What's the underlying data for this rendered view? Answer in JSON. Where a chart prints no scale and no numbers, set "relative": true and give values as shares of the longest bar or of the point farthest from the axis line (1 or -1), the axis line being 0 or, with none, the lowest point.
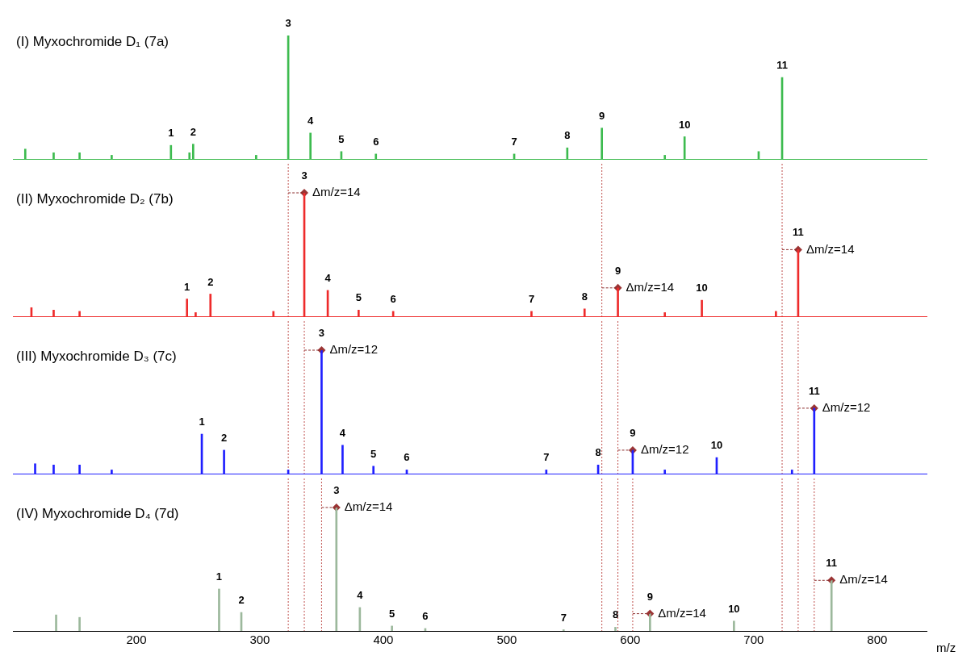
{
  "chart_data": [
    {
      "type": "bar",
      "title": "(I) Myxochromide D₁ (7a)",
      "relative": true,
      "tick_labels": false,
      "xlim": [
        100,
        840
      ],
      "color": "#3dbb4f",
      "x": [
        110,
        133,
        154,
        180,
        228,
        243,
        246,
        297,
        323,
        341,
        366,
        394,
        506,
        549,
        577,
        628,
        644,
        704,
        723
      ],
      "values": [
        0.08,
        0.05,
        0.05,
        0.03,
        0.11,
        0.05,
        0.12,
        0.03,
        1,
        0.21,
        0.06,
        0.04,
        0.04,
        0.09,
        0.25,
        0.03,
        0.18,
        0.06,
        0.66
      ],
      "annotations": [
        {
          "text": "1",
          "x": 228,
          "y": 0.11
        },
        {
          "text": "2",
          "x": 246,
          "y": 0.12
        },
        {
          "text": "3",
          "x": 323,
          "y": 1
        },
        {
          "text": "4",
          "x": 341,
          "y": 0.21
        },
        {
          "text": "5",
          "x": 366,
          "y": 0.06
        },
        {
          "text": "6",
          "x": 394,
          "y": 0.04
        },
        {
          "text": "7",
          "x": 506,
          "y": 0.04
        },
        {
          "text": "8",
          "x": 549,
          "y": 0.09
        },
        {
          "text": "9",
          "x": 577,
          "y": 0.25
        },
        {
          "text": "10",
          "x": 644,
          "y": 0.18
        },
        {
          "text": "11",
          "x": 723,
          "y": 0.66
        }
      ]
    },
    {
      "type": "bar",
      "title": "(II) Myxochromide D₂ (7b)",
      "relative": true,
      "tick_labels": false,
      "xlim": [
        100,
        840
      ],
      "color": "#ee2b2b",
      "x": [
        115,
        133,
        154,
        241,
        248,
        260,
        311,
        336,
        355,
        380,
        408,
        520,
        563,
        590,
        628,
        658,
        718,
        736
      ],
      "values": [
        0.07,
        0.05,
        0.04,
        0.14,
        0.03,
        0.18,
        0.04,
        1,
        0.21,
        0.05,
        0.04,
        0.04,
        0.06,
        0.23,
        0.03,
        0.13,
        0.04,
        0.54
      ],
      "ref_lines": [
        {
          "axis": "x",
          "value": 323,
          "color": "#c0504d",
          "line_style": "dotted"
        },
        {
          "axis": "x",
          "value": 577,
          "color": "#c0504d",
          "line_style": "dotted"
        },
        {
          "axis": "x",
          "value": 723,
          "color": "#c0504d",
          "line_style": "dotted"
        }
      ],
      "annotations": [
        {
          "text": "1",
          "x": 241,
          "y": 0.14
        },
        {
          "text": "2",
          "x": 260,
          "y": 0.18
        },
        {
          "text": "3",
          "x": 336,
          "y": 1
        },
        {
          "text": "Δm/z=14",
          "x": 336,
          "y": 1
        },
        {
          "text": "4",
          "x": 355,
          "y": 0.21
        },
        {
          "text": "5",
          "x": 380,
          "y": 0.05
        },
        {
          "text": "6",
          "x": 408,
          "y": 0.04
        },
        {
          "text": "7",
          "x": 520,
          "y": 0.04
        },
        {
          "text": "8",
          "x": 563,
          "y": 0.06
        },
        {
          "text": "9",
          "x": 590,
          "y": 0.23
        },
        {
          "text": "Δm/z=14",
          "x": 590,
          "y": 0.23
        },
        {
          "text": "10",
          "x": 658,
          "y": 0.13
        },
        {
          "text": "11",
          "x": 736,
          "y": 0.54
        },
        {
          "text": "Δm/z=14",
          "x": 736,
          "y": 0.54
        }
      ]
    },
    {
      "type": "bar",
      "title": "(III) Myxochromide D₃ (7c)",
      "relative": true,
      "tick_labels": false,
      "xlim": [
        100,
        840
      ],
      "color": "#1f1fff",
      "x": [
        118,
        133,
        154,
        180,
        253,
        271,
        323,
        350,
        367,
        392,
        419,
        532,
        574,
        602,
        628,
        670,
        731,
        749
      ],
      "values": [
        0.08,
        0.07,
        0.07,
        0.03,
        0.32,
        0.19,
        0.03,
        1,
        0.23,
        0.06,
        0.03,
        0.03,
        0.07,
        0.19,
        0.03,
        0.13,
        0.03,
        0.53
      ],
      "ref_lines": [
        {
          "axis": "x",
          "value": 323,
          "color": "#c0504d",
          "line_style": "dotted"
        },
        {
          "axis": "x",
          "value": 336,
          "color": "#c0504d",
          "line_style": "dotted"
        },
        {
          "axis": "x",
          "value": 577,
          "color": "#c0504d",
          "line_style": "dotted"
        },
        {
          "axis": "x",
          "value": 590,
          "color": "#c0504d",
          "line_style": "dotted"
        },
        {
          "axis": "x",
          "value": 723,
          "color": "#c0504d",
          "line_style": "dotted"
        },
        {
          "axis": "x",
          "value": 736,
          "color": "#c0504d",
          "line_style": "dotted"
        }
      ],
      "annotations": [
        {
          "text": "1",
          "x": 253,
          "y": 0.32
        },
        {
          "text": "2",
          "x": 271,
          "y": 0.19
        },
        {
          "text": "3",
          "x": 350,
          "y": 1
        },
        {
          "text": "Δm/z=12",
          "x": 350,
          "y": 1
        },
        {
          "text": "4",
          "x": 367,
          "y": 0.23
        },
        {
          "text": "5",
          "x": 392,
          "y": 0.06
        },
        {
          "text": "6",
          "x": 419,
          "y": 0.03
        },
        {
          "text": "7",
          "x": 532,
          "y": 0.03
        },
        {
          "text": "8",
          "x": 574,
          "y": 0.07
        },
        {
          "text": "9",
          "x": 602,
          "y": 0.19
        },
        {
          "text": "Δm/z=12",
          "x": 602,
          "y": 0.19
        },
        {
          "text": "10",
          "x": 670,
          "y": 0.13
        },
        {
          "text": "11",
          "x": 749,
          "y": 0.53
        },
        {
          "text": "Δm/z=12",
          "x": 749,
          "y": 0.53
        }
      ]
    },
    {
      "type": "bar",
      "title": "(IV) Myxochromide D₄ (7d)",
      "relative": true,
      "tick_labels": "x",
      "xlabel": "m/z",
      "xlim": [
        100,
        840
      ],
      "xticks": [
        200,
        300,
        400,
        500,
        600,
        700,
        800
      ],
      "color": "#9cb89c",
      "x": [
        135,
        154,
        267,
        285,
        362,
        381,
        407,
        434,
        546,
        588,
        616,
        684,
        763
      ],
      "values": [
        0.13,
        0.11,
        0.34,
        0.15,
        1,
        0.19,
        0.04,
        0.02,
        0.01,
        0.03,
        0.14,
        0.08,
        0.41
      ],
      "ref_lines": [
        {
          "axis": "x",
          "value": 323,
          "color": "#c0504d",
          "line_style": "dotted"
        },
        {
          "axis": "x",
          "value": 336,
          "color": "#c0504d",
          "line_style": "dotted"
        },
        {
          "axis": "x",
          "value": 350,
          "color": "#c0504d",
          "line_style": "dotted"
        },
        {
          "axis": "x",
          "value": 577,
          "color": "#c0504d",
          "line_style": "dotted"
        },
        {
          "axis": "x",
          "value": 590,
          "color": "#c0504d",
          "line_style": "dotted"
        },
        {
          "axis": "x",
          "value": 602,
          "color": "#c0504d",
          "line_style": "dotted"
        },
        {
          "axis": "x",
          "value": 723,
          "color": "#c0504d",
          "line_style": "dotted"
        },
        {
          "axis": "x",
          "value": 736,
          "color": "#c0504d",
          "line_style": "dotted"
        },
        {
          "axis": "x",
          "value": 749,
          "color": "#c0504d",
          "line_style": "dotted"
        }
      ],
      "annotations": [
        {
          "text": "1",
          "x": 267,
          "y": 0.34
        },
        {
          "text": "2",
          "x": 285,
          "y": 0.15
        },
        {
          "text": "3",
          "x": 362,
          "y": 1
        },
        {
          "text": "Δm/z=14",
          "x": 362,
          "y": 1
        },
        {
          "text": "4",
          "x": 381,
          "y": 0.19
        },
        {
          "text": "5",
          "x": 407,
          "y": 0.04
        },
        {
          "text": "6",
          "x": 434,
          "y": 0.02
        },
        {
          "text": "7",
          "x": 546,
          "y": 0.01
        },
        {
          "text": "8",
          "x": 588,
          "y": 0.03
        },
        {
          "text": "9",
          "x": 616,
          "y": 0.14
        },
        {
          "text": "Δm/z=14",
          "x": 616,
          "y": 0.14
        },
        {
          "text": "10",
          "x": 684,
          "y": 0.08
        },
        {
          "text": "11",
          "x": 763,
          "y": 0.41
        },
        {
          "text": "Δm/z=14",
          "x": 763,
          "y": 0.41
        }
      ]
    }
  ]
}
